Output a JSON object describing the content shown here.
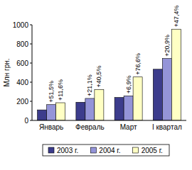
{
  "chart_data": {
    "type": "bar",
    "y_label": "Млн грн.",
    "categories": [
      "Январь",
      "Февраль",
      "Март",
      "I квартал"
    ],
    "series": [
      {
        "name": "2003 г.",
        "color": "#3c3c8c",
        "values": [
          110,
          190,
          240,
          535
        ]
      },
      {
        "name": "2004 г.",
        "color": "#9494d8",
        "values": [
          165,
          230,
          257,
          647
        ],
        "annotations": [
          "+51,5%",
          "+21,1%",
          "+6,9%",
          "+20,9%"
        ]
      },
      {
        "name": "2005 г.",
        "color": "#ffffc4",
        "values": [
          185,
          323,
          454,
          954
        ],
        "annotations": [
          "+11,6%",
          "+40,5%",
          "+76,6%",
          "+47,4%"
        ]
      }
    ],
    "ylim": [
      0,
      1000
    ],
    "yticks": [
      0,
      200,
      400,
      600,
      800,
      1000
    ],
    "grid": false,
    "legend": "bottom"
  }
}
